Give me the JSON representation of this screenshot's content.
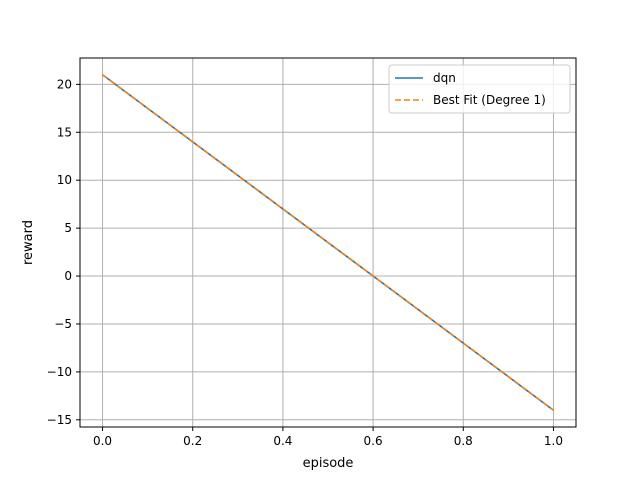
{
  "chart_data": {
    "type": "line",
    "title": "",
    "xlabel": "episode",
    "ylabel": "reward",
    "xlim": [
      -0.05,
      1.05
    ],
    "ylim": [
      -15.75,
      22.75
    ],
    "x_ticks": [
      0.0,
      0.2,
      0.4,
      0.6,
      0.8,
      1.0
    ],
    "x_tick_labels": [
      "0.0",
      "0.2",
      "0.4",
      "0.6",
      "0.8",
      "1.0"
    ],
    "y_ticks": [
      -15,
      -10,
      -5,
      0,
      5,
      10,
      15,
      20
    ],
    "y_tick_labels": [
      "−15",
      "−10",
      "−5",
      "0",
      "5",
      "10",
      "15",
      "20"
    ],
    "grid": true,
    "legend_position": "top-right",
    "series": [
      {
        "name": "dqn",
        "x": [
          0.0,
          1.0
        ],
        "y": [
          21,
          -14
        ],
        "color": "#1f77b4",
        "style": "solid"
      },
      {
        "name": "Best Fit (Degree 1)",
        "x": [
          0.0,
          1.0
        ],
        "y": [
          21,
          -14
        ],
        "color": "#ff7f0e",
        "style": "dashed"
      }
    ]
  }
}
